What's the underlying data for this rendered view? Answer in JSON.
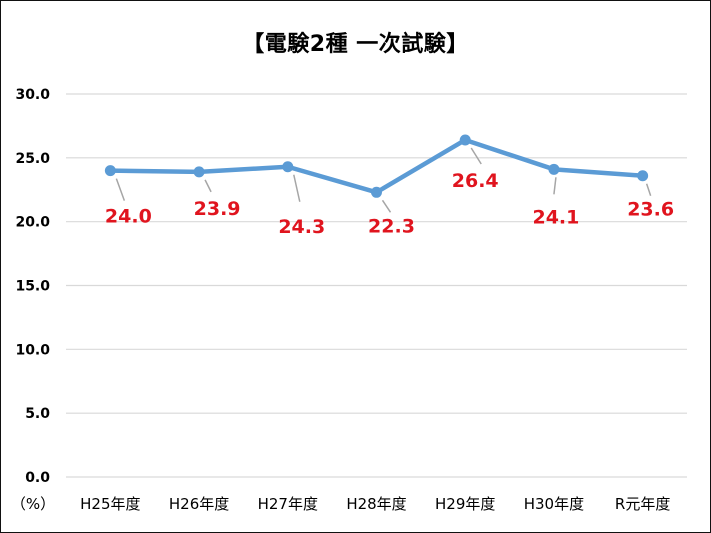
{
  "chart_data": {
    "type": "line",
    "title": "【電験2種 一次試験】",
    "unit_label": "（%）",
    "categories": [
      "H25年度",
      "H26年度",
      "H27年度",
      "H28年度",
      "H29年度",
      "H30年度",
      "R元年度"
    ],
    "series": [
      {
        "values": [
          24.0,
          23.9,
          24.3,
          22.3,
          26.4,
          24.1,
          23.6
        ]
      }
    ],
    "data_labels": [
      "24.0",
      "23.9",
      "24.3",
      "22.3",
      "26.4",
      "24.1",
      "23.6"
    ],
    "y_ticks": [
      "0.0",
      "5.0",
      "10.0",
      "15.0",
      "20.0",
      "25.0",
      "30.0"
    ],
    "ylim": [
      0,
      30
    ],
    "grid": true,
    "legend": "none",
    "colors": {
      "line": "#5b9bd5",
      "data_label": "#e0141e",
      "leader": "#a6a6a6",
      "grid": "#d9d9d9"
    }
  }
}
